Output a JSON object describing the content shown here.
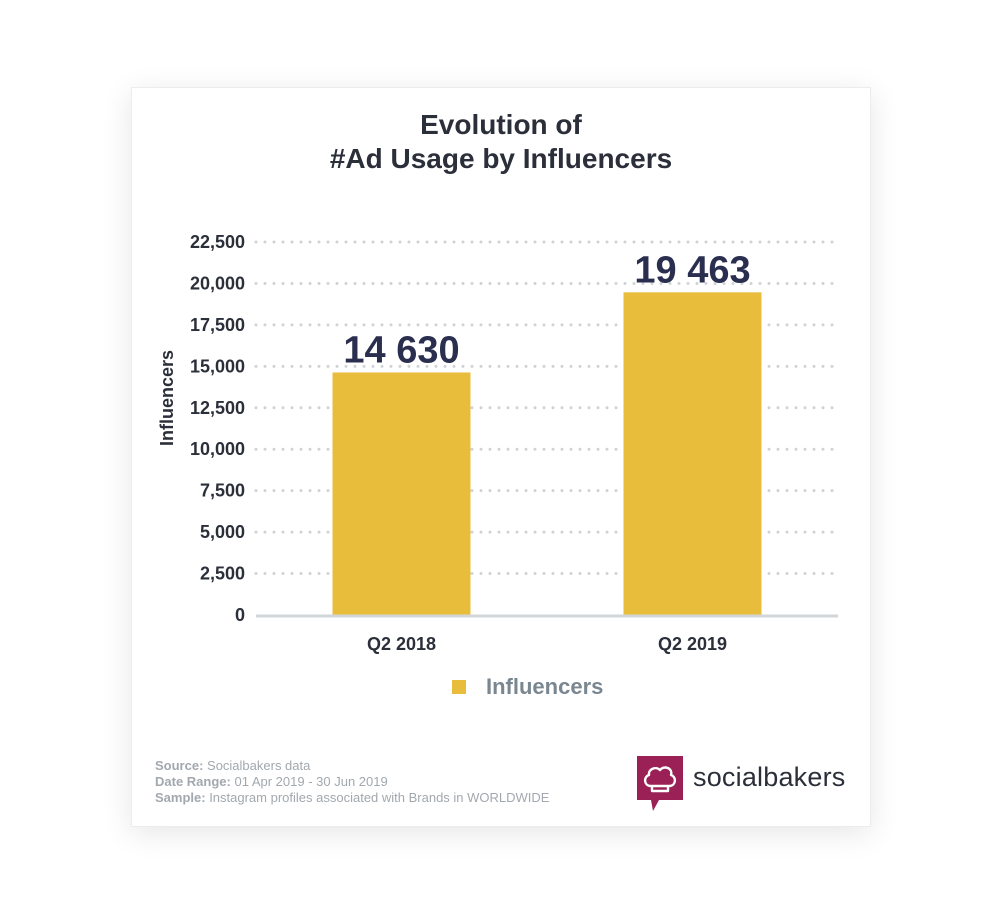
{
  "chart_data": {
    "type": "bar",
    "title": [
      "Evolution of",
      "#Ad Usage by Influencers"
    ],
    "ylabel": "Influencers",
    "xlabel": "",
    "categories": [
      "Q2 2018",
      "Q2 2019"
    ],
    "series": [
      {
        "name": "Influencers",
        "values": [
          14630,
          19463
        ],
        "labels": [
          "14 630",
          "19 463"
        ]
      }
    ],
    "ylim": [
      0,
      22500
    ],
    "yticks": [
      0,
      2500,
      5000,
      7500,
      10000,
      12500,
      15000,
      17500,
      20000,
      22500
    ],
    "ytick_labels": [
      "0",
      "2,500",
      "5,000",
      "7,500",
      "10,000",
      "12,500",
      "15,000",
      "17,500",
      "20,000",
      "22,500"
    ],
    "grid": true,
    "legend_position": "bottom",
    "colors": {
      "bar": "#e8bd3c",
      "label": "#2b2f4f",
      "grid": "#cfd3d6",
      "axis": "#d3d6d9",
      "tick": "#2b2f3a"
    }
  },
  "footer": {
    "source_label": "Source:",
    "source_value": " Socialbakers data",
    "date_label": "Date Range:",
    "date_value": " 01 Apr 2019 - 30 Jun 2019",
    "sample_label": "Sample:",
    "sample_value": " Instagram profiles associated with Brands in WORLDWIDE"
  },
  "brand": {
    "name": "socialbakers",
    "color": "#9b2055",
    "icon": "chef-hat-speech-bubble-icon"
  }
}
